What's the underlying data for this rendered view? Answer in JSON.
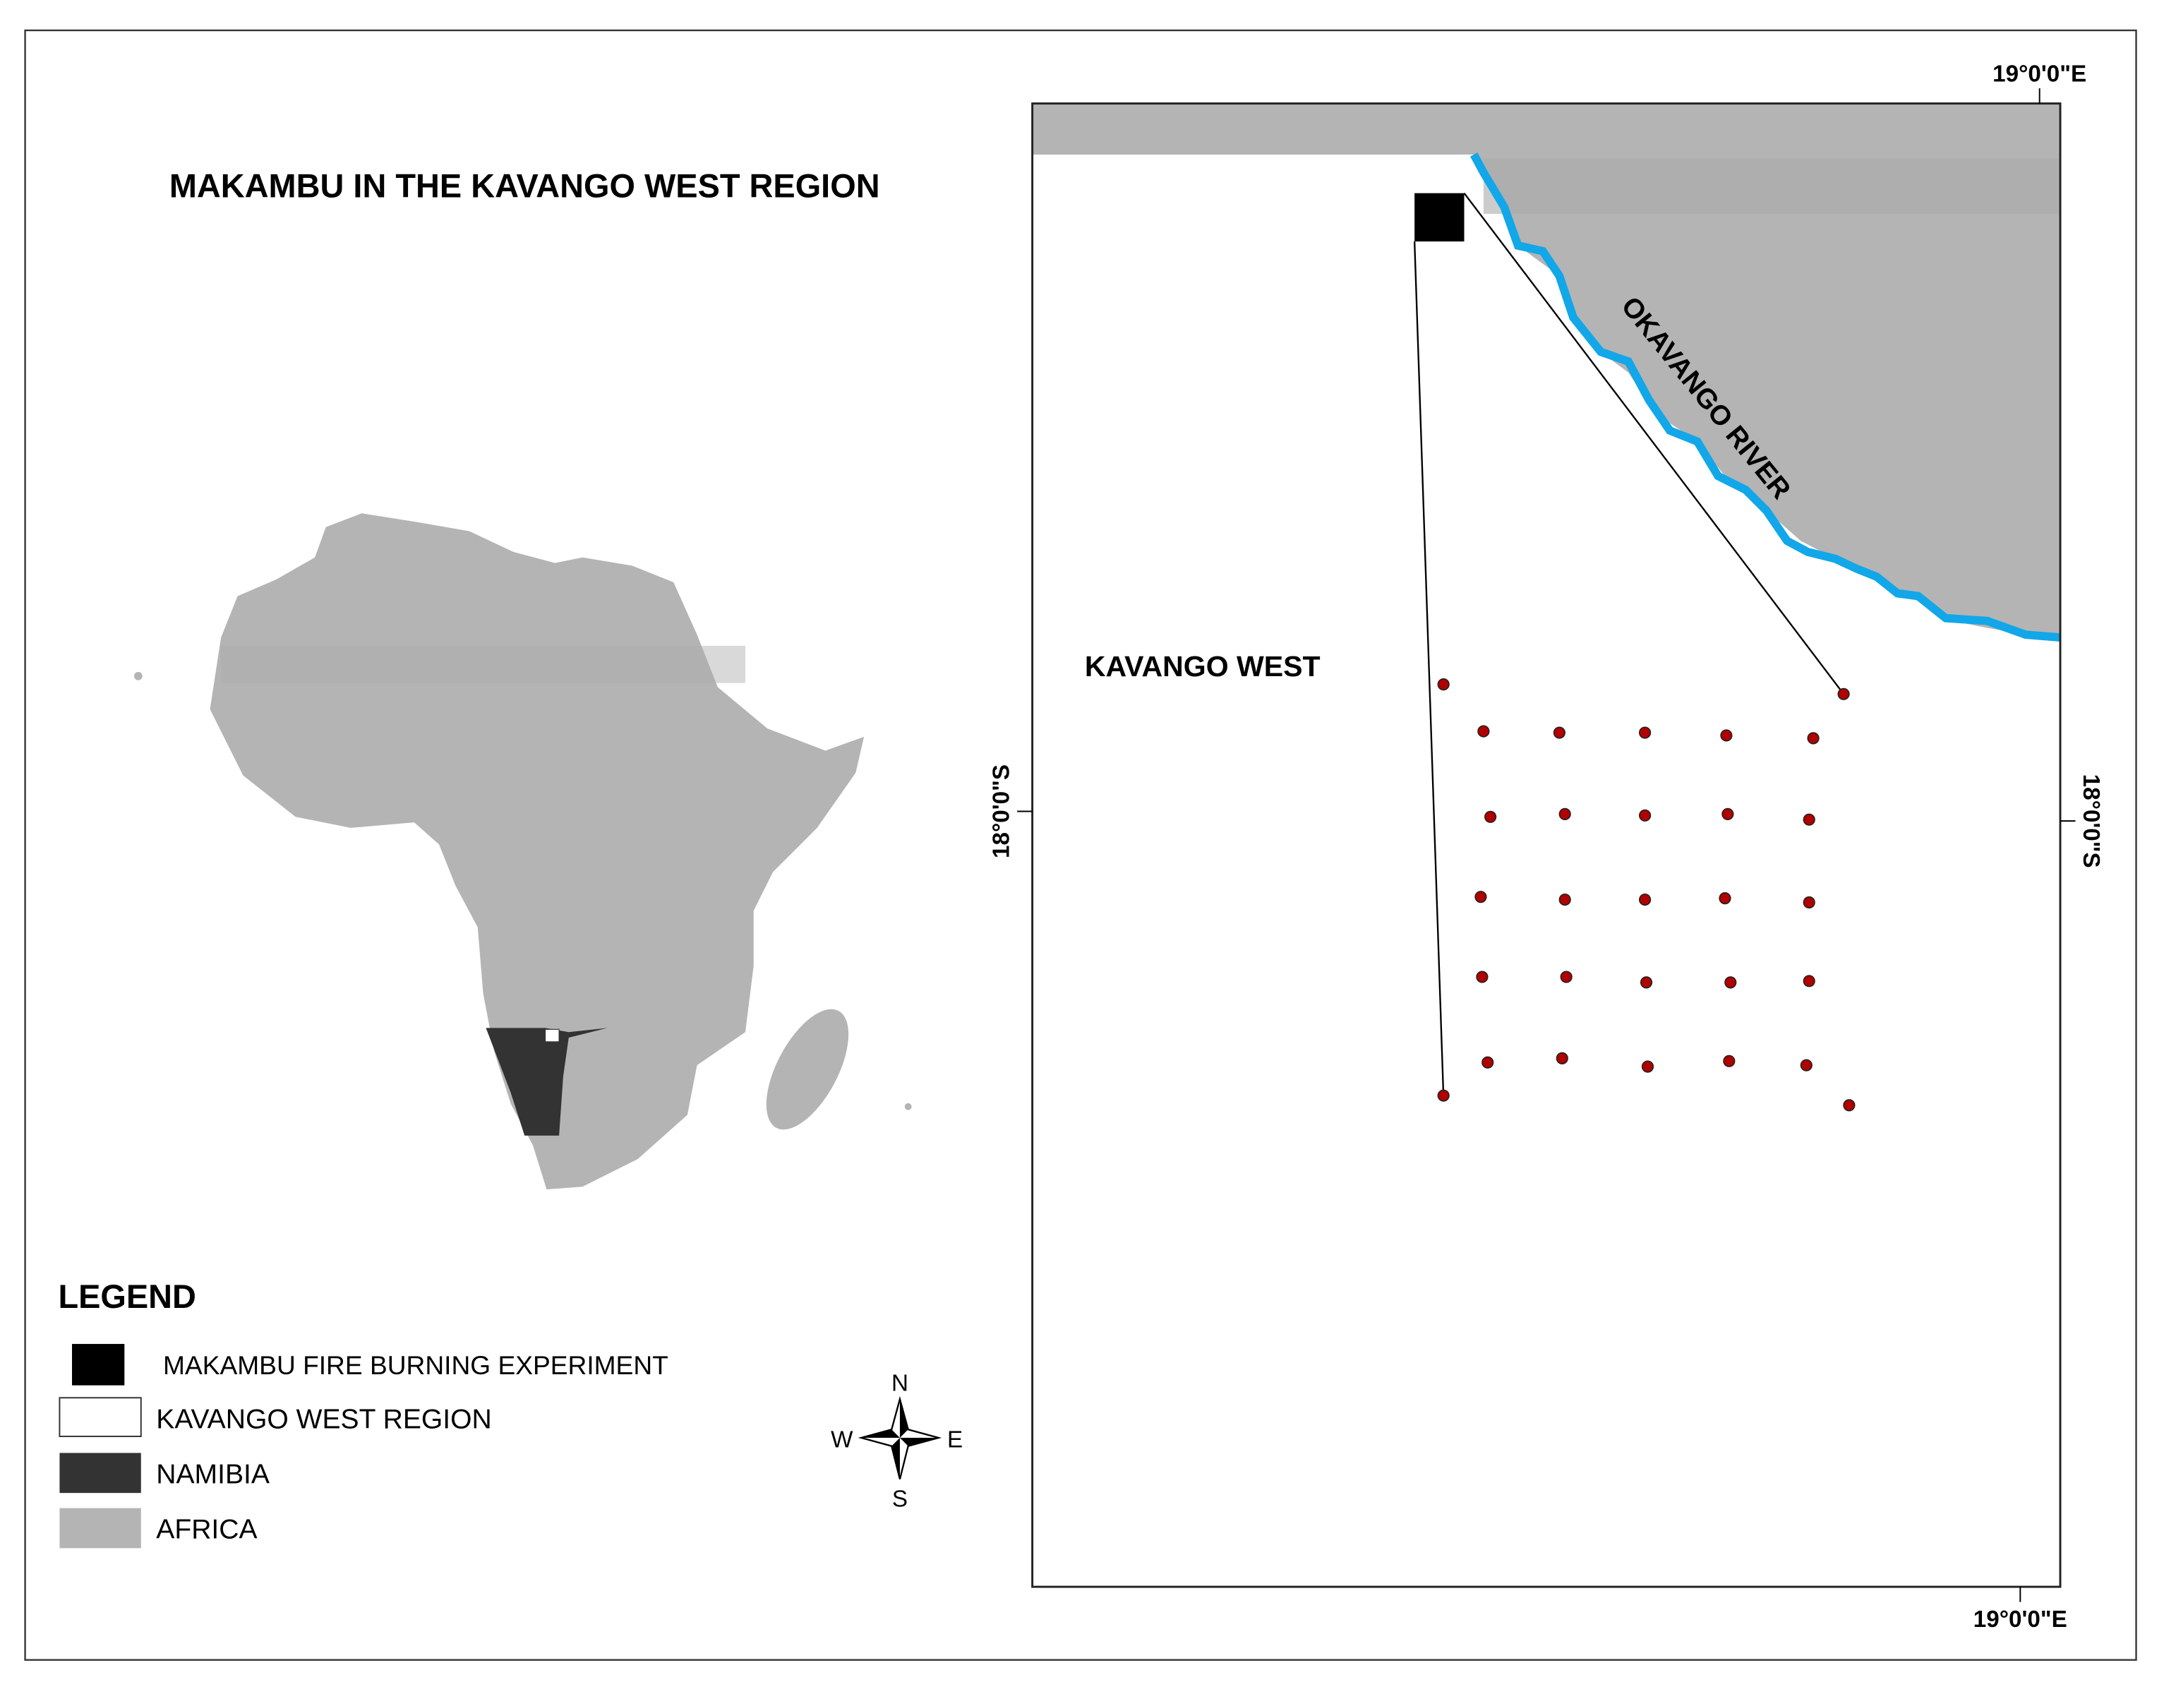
{
  "title": "MAKAMBU IN THE KAVANGO WEST REGION",
  "legend": {
    "title": "LEGEND",
    "items": [
      "MAKAMBU FIRE BURNING EXPERIMENT",
      "KAVANGO WEST REGION",
      "NAMIBIA",
      "AFRICA"
    ]
  },
  "map": {
    "region_label": "KAVANGO WEST",
    "river_label": "OKAVANGO RIVER",
    "longitude_labels": [
      "19°0'0\"E",
      "19°0'0\"E"
    ],
    "latitude_labels": [
      "18°0'0\"S",
      "18°0'0\"S"
    ]
  },
  "compass": {
    "north": "N",
    "south": "S",
    "east": "E",
    "west": "W"
  }
}
